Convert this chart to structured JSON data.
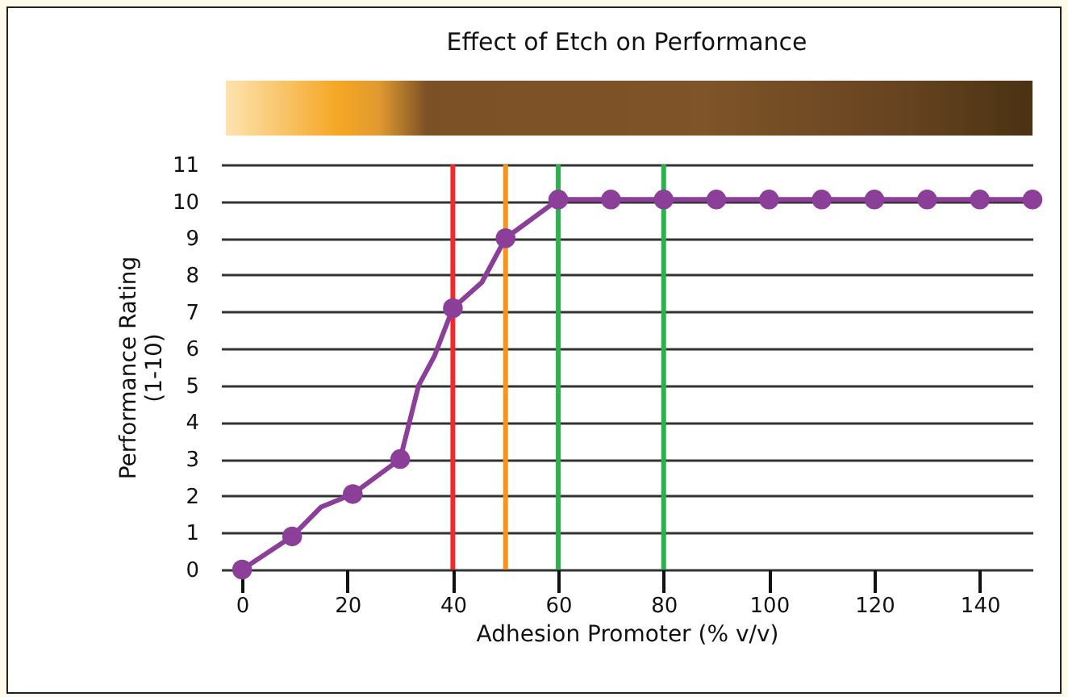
{
  "chart_data": {
    "type": "line",
    "title": "Effect of Etch on Performance",
    "xlabel": "Adhesion Promoter (% v/v)",
    "ylabel": "Performance Rating\n(1-10)",
    "xlim": [
      -4,
      150
    ],
    "xticks": [
      0,
      20,
      40,
      60,
      80,
      100,
      120,
      140
    ],
    "ylim": [
      0,
      11
    ],
    "yticks": [
      0,
      1,
      2,
      3,
      4,
      5,
      6,
      7,
      8,
      9,
      10,
      11
    ],
    "grid": "y",
    "series": [
      {
        "type": "line",
        "marker": "none",
        "color": "#8b3f98",
        "x": [
          0,
          9.5,
          15,
          21,
          30,
          33.5,
          36.5,
          40,
          45.5,
          50,
          60,
          70,
          80,
          90,
          100,
          110,
          120,
          130,
          140,
          150
        ],
        "values": [
          0,
          0.9,
          1.7,
          2.05,
          3,
          5,
          5.8,
          7.1,
          7.8,
          9,
          10.05,
          10.05,
          10.05,
          10.05,
          10.05,
          10.05,
          10.05,
          10.05,
          10.05,
          10.05
        ]
      },
      {
        "type": "scatter",
        "marker": "circle",
        "color": "#8b3f98",
        "x": [
          0,
          9.5,
          21,
          30,
          40,
          50,
          60,
          70,
          80,
          90,
          100,
          110,
          120,
          130,
          140,
          150
        ],
        "values": [
          0,
          0.9,
          2.05,
          3,
          7.1,
          9,
          10.05,
          10.05,
          10.05,
          10.05,
          10.05,
          10.05,
          10.05,
          10.05,
          10.05,
          10.05
        ]
      }
    ],
    "ref_lines": [
      {
        "axis": "x",
        "value": 40,
        "color": "#ee2a2a"
      },
      {
        "axis": "x",
        "value": 50,
        "color": "#f7941d"
      },
      {
        "axis": "x",
        "value": 60,
        "color": "#2bb24c"
      },
      {
        "axis": "x",
        "value": 80,
        "color": "#2bb24c"
      }
    ]
  }
}
